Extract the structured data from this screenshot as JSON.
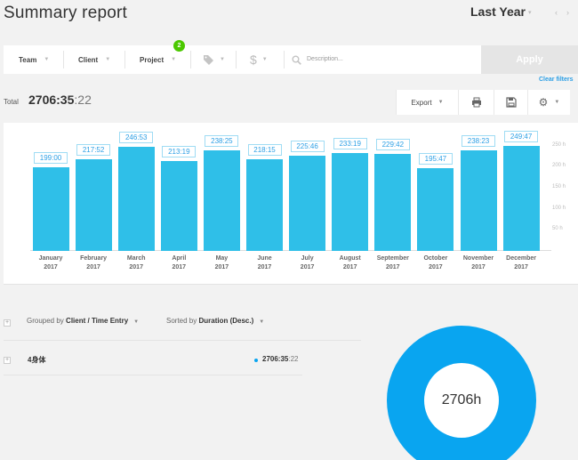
{
  "header": {
    "title": "Summary report",
    "range": "Last Year",
    "range_caret": "▾",
    "prev": "‹",
    "next": "›"
  },
  "filters": {
    "team": "Team",
    "client": "Client",
    "project": "Project",
    "project_badge": "2",
    "tag_icon": "tag-icon",
    "billable_icon": "dollar-icon",
    "search_icon": "search-icon",
    "description_placeholder": "Description...",
    "apply": "Apply",
    "clear": "Clear filters"
  },
  "totals": {
    "label": "Total",
    "hours_minutes": "2706:35",
    "seconds": ":22"
  },
  "toolbar": {
    "export": "Export",
    "print_icon": "print-icon",
    "save_icon": "save-icon",
    "settings_icon": "gear-icon"
  },
  "chart_data": {
    "type": "bar",
    "categories": [
      "January\n2017",
      "February\n2017",
      "March\n2017",
      "April\n2017",
      "May\n2017",
      "June\n2017",
      "July\n2017",
      "August\n2017",
      "September\n2017",
      "October\n2017",
      "November\n2017",
      "December\n2017"
    ],
    "month_labels": [
      "January",
      "February",
      "March",
      "April",
      "May",
      "June",
      "July",
      "August",
      "September",
      "October",
      "November",
      "December"
    ],
    "year_label": "2017",
    "values": [
      199.0,
      217.87,
      246.88,
      213.32,
      238.42,
      218.25,
      225.77,
      233.32,
      229.7,
      195.78,
      238.38,
      249.78
    ],
    "data_labels": [
      "199:00",
      "217:52",
      "246:53",
      "213:19",
      "238:25",
      "218:15",
      "225:46",
      "233:19",
      "229:42",
      "195:47",
      "238:23",
      "249:47"
    ],
    "y_ticks": [
      "50 h",
      "100 h",
      "150 h",
      "200 h",
      "250 h"
    ],
    "y_tick_values": [
      50,
      100,
      150,
      200,
      250
    ],
    "ylim": [
      0,
      262
    ],
    "color": "#2fbfe8"
  },
  "grouping": {
    "grouped_by_label": "Grouped by",
    "grouped_by_value": "Client / Time Entry",
    "sorted_by_label": "Sorted by",
    "sorted_by_value": "Duration (Desc.)",
    "expand": "+"
  },
  "rows": [
    {
      "name": "4身体",
      "duration": "2706:35",
      "seconds": ":22",
      "color": "#09a5f0"
    }
  ],
  "donut": {
    "center_label": "2706h",
    "color": "#09a5f0"
  }
}
